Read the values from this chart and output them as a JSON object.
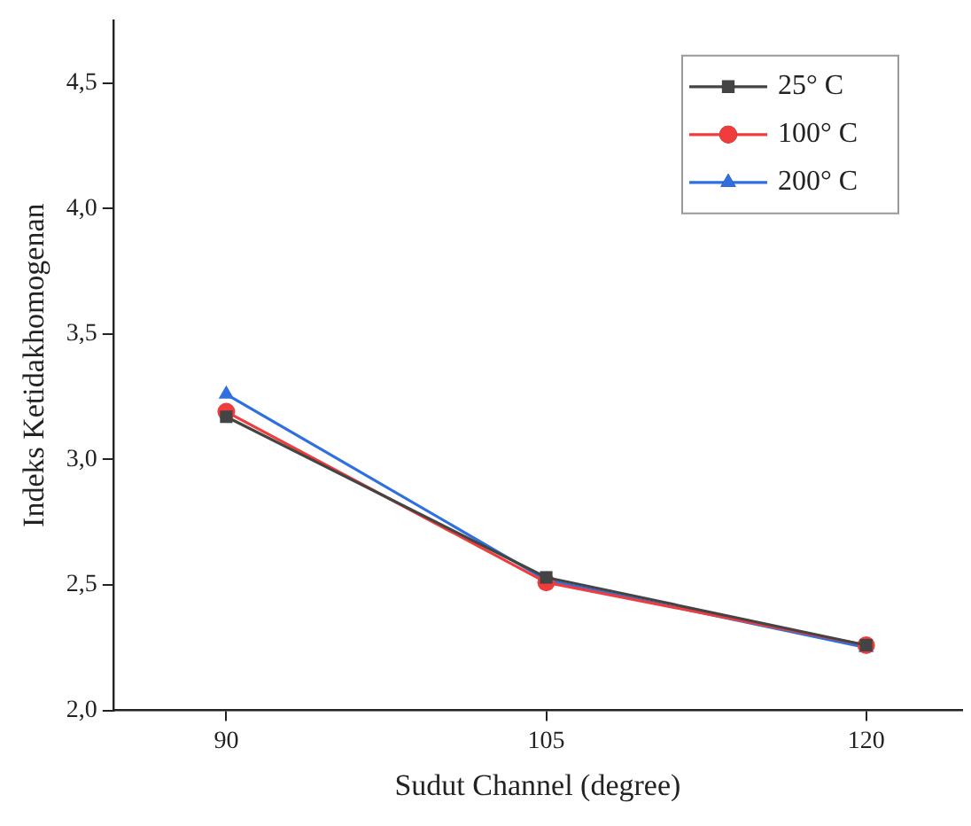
{
  "chart_data": {
    "type": "line",
    "xlabel": "Sudut Channel (degree)",
    "ylabel": "Indeks Ketidakhomogenan",
    "x": [
      90,
      105,
      120
    ],
    "xlim": [
      84.7,
      124.5
    ],
    "xticks": [
      90,
      105,
      120
    ],
    "ylim": [
      2.0,
      4.75
    ],
    "yticks": [
      {
        "value": 2.0,
        "label": "2,0"
      },
      {
        "value": 2.5,
        "label": "2,5"
      },
      {
        "value": 3.0,
        "label": "3,0"
      },
      {
        "value": 3.5,
        "label": "3,5"
      },
      {
        "value": 4.0,
        "label": "4,0"
      },
      {
        "value": 4.5,
        "label": "4,5"
      }
    ],
    "grid": false,
    "legend": "top right",
    "line_style": "solid",
    "series": [
      {
        "name": "25° C",
        "color": "#444444",
        "marker": "square",
        "values": [
          3.17,
          2.53,
          2.26
        ]
      },
      {
        "name": "100° C",
        "color": "#f03c3c",
        "marker": "circle",
        "values": [
          3.19,
          2.51,
          2.26
        ]
      },
      {
        "name": "200° C",
        "color": "#2f6fe0",
        "marker": "triangle",
        "values": [
          3.26,
          2.52,
          2.25
        ]
      }
    ]
  }
}
